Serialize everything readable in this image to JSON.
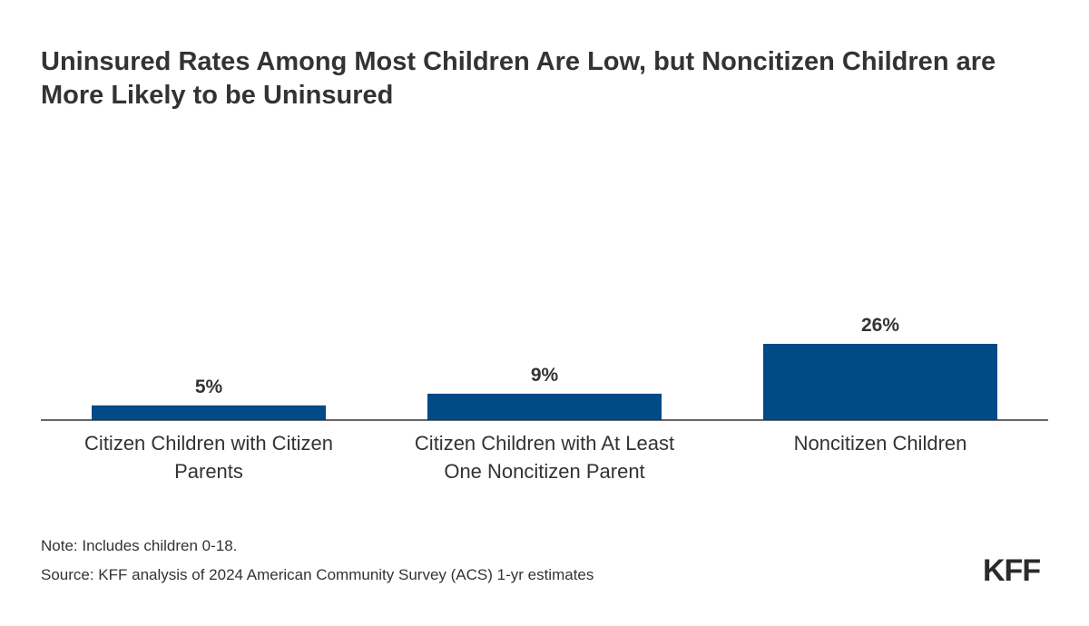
{
  "title": "Uninsured Rates Among Most Children Are Low, but Noncitizen Children are More Likely to be Uninsured",
  "note": "Note: Includes children 0-18.",
  "source": "Source: KFF analysis of 2024 American Community Survey (ACS) 1-yr estimates",
  "logo": "KFF",
  "colors": {
    "bar": "#004b87",
    "axis": "#333333",
    "text": "#333333"
  },
  "chart_data": {
    "type": "bar",
    "title": "Uninsured Rates Among Most Children Are Low, but Noncitizen Children are More Likely to be Uninsured",
    "categories": [
      [
        "Citizen Children with Citizen",
        "Parents"
      ],
      [
        "Citizen Children with At Least",
        "One Noncitizen Parent"
      ],
      [
        "Noncitizen Children"
      ]
    ],
    "values": [
      5,
      9,
      26
    ],
    "data_labels": [
      "5%",
      "9%",
      "26%"
    ],
    "xlabel": "",
    "ylabel": "",
    "grid": false,
    "legend": "none"
  }
}
